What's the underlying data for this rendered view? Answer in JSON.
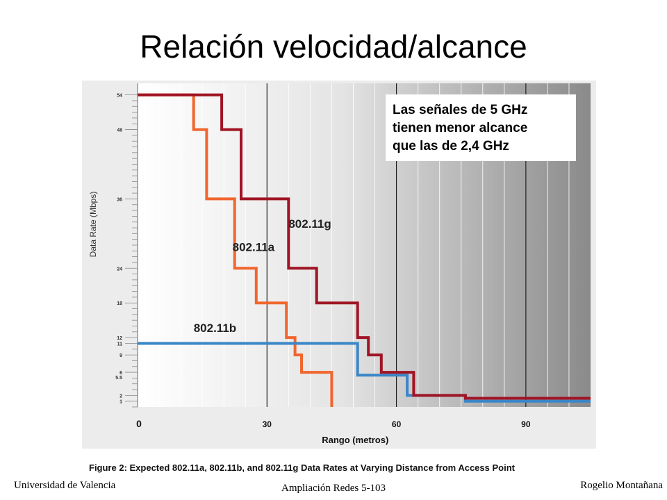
{
  "title": "Relación velocidad/alcance",
  "callout": {
    "lines": [
      "Las señales de 5 GHz",
      "tienen menor alcance",
      "que las de 2,4 GHz"
    ]
  },
  "figure_caption": "Figure 2:  Expected 802.11a, 802.11b, and 802.11g Data Rates at Varying Distance from Access Point",
  "footer": {
    "left": "Universidad de Valencia",
    "center": "Ampliación Redes 5-103",
    "right": "Rogelio Montañana"
  },
  "colors": {
    "a": "#f0662e",
    "b": "#3a86c8",
    "g": "#a01424"
  },
  "chart_data": {
    "type": "line",
    "step": true,
    "xlabel": "Rango (metros)",
    "ylabel": "Data Rate (Mbps)",
    "x_ticks": [
      0,
      30,
      60,
      90
    ],
    "y_ticks": [
      1,
      2,
      5.5,
      6,
      9,
      11,
      12,
      18,
      24,
      36,
      48,
      54
    ],
    "xlim": [
      0,
      105
    ],
    "ylim": [
      0,
      56
    ],
    "grid": true,
    "series": [
      {
        "name": "802.11a",
        "color_key": "a",
        "points": [
          [
            0,
            54
          ],
          [
            13,
            54
          ],
          [
            13,
            48
          ],
          [
            16,
            48
          ],
          [
            16,
            36
          ],
          [
            22.5,
            36
          ],
          [
            22.5,
            24
          ],
          [
            27.5,
            24
          ],
          [
            27.5,
            18
          ],
          [
            34.5,
            18
          ],
          [
            34.5,
            12
          ],
          [
            36.5,
            12
          ],
          [
            36.5,
            9
          ],
          [
            38,
            9
          ],
          [
            38,
            6
          ],
          [
            45,
            6
          ],
          [
            45,
            0
          ]
        ]
      },
      {
        "name": "802.11b",
        "color_key": "b",
        "points": [
          [
            0,
            11
          ],
          [
            51,
            11
          ],
          [
            51,
            5.5
          ],
          [
            62.5,
            5.5
          ],
          [
            62.5,
            2
          ],
          [
            76,
            2
          ],
          [
            76,
            1
          ],
          [
            105,
            1
          ]
        ]
      },
      {
        "name": "802.11g",
        "color_key": "g",
        "points": [
          [
            0,
            54
          ],
          [
            19.5,
            54
          ],
          [
            19.5,
            48
          ],
          [
            24,
            48
          ],
          [
            24,
            36
          ],
          [
            35,
            36
          ],
          [
            35,
            24
          ],
          [
            41.5,
            24
          ],
          [
            41.5,
            18
          ],
          [
            51,
            18
          ],
          [
            51,
            12
          ],
          [
            53.5,
            12
          ],
          [
            53.5,
            9
          ],
          [
            56.5,
            9
          ],
          [
            56.5,
            6
          ],
          [
            64,
            6
          ],
          [
            64,
            2
          ],
          [
            76,
            2
          ],
          [
            76,
            1.5
          ],
          [
            105,
            1.5
          ]
        ]
      }
    ]
  }
}
